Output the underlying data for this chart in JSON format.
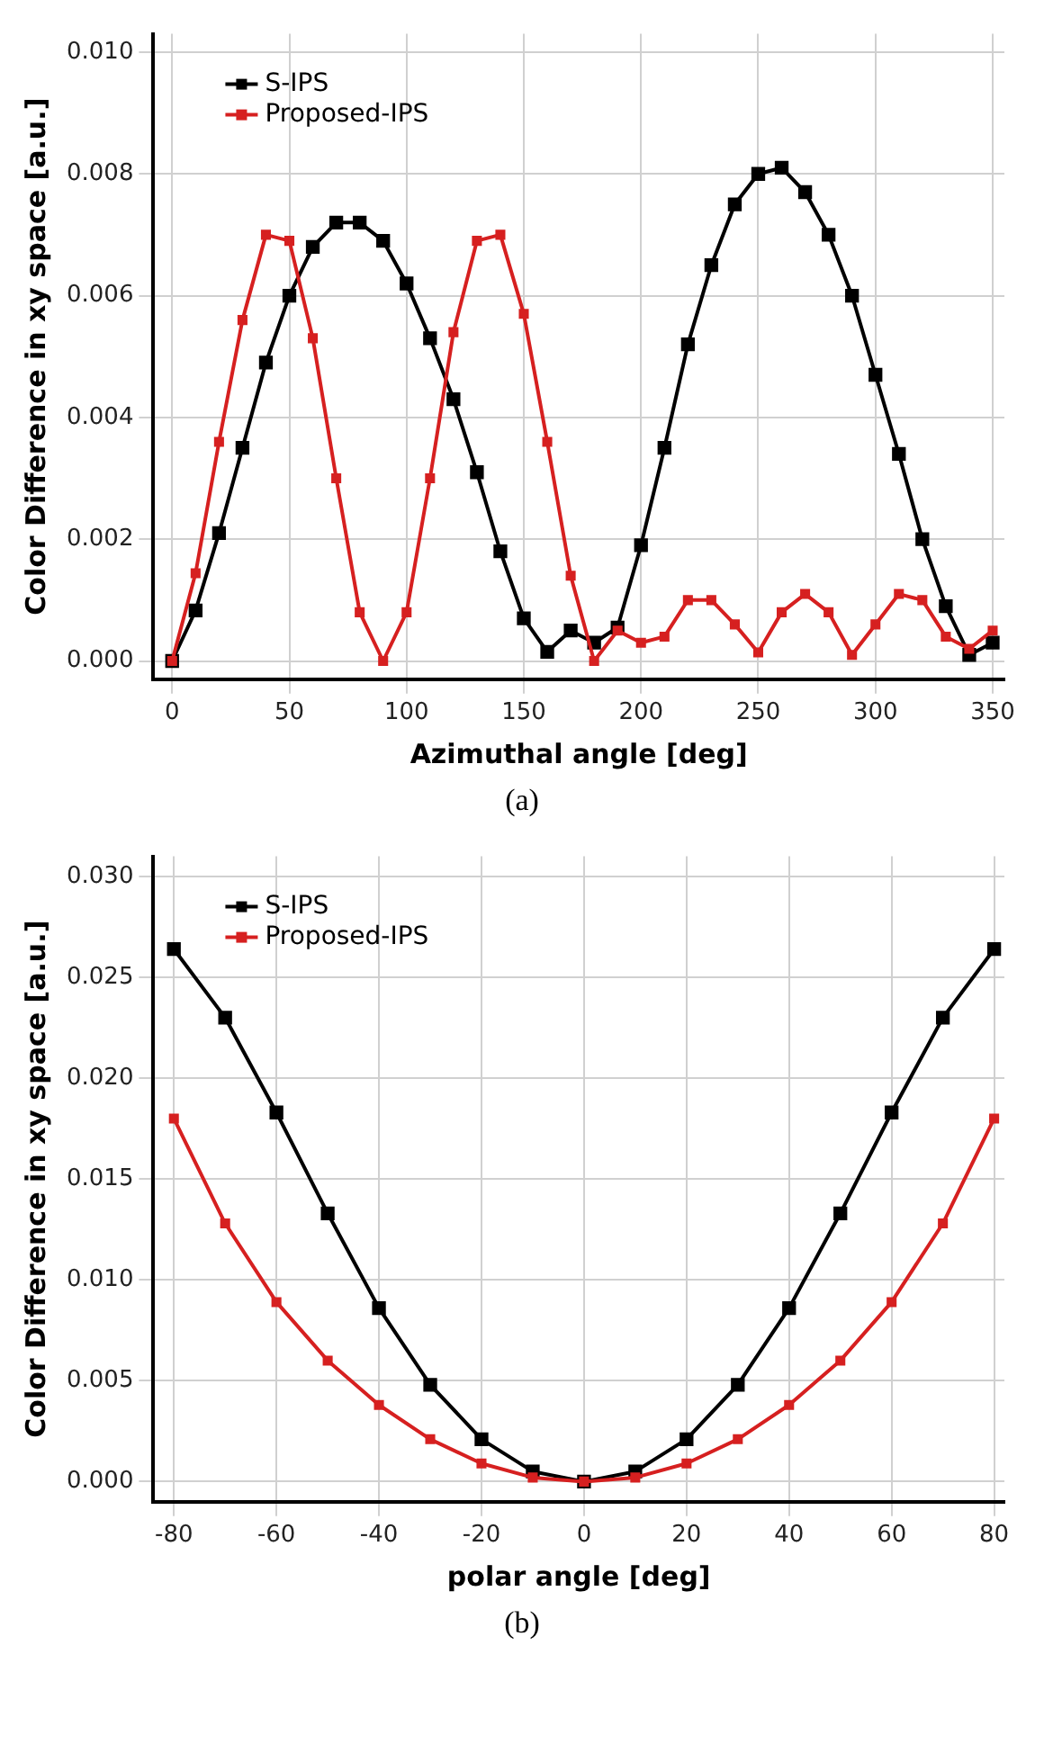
{
  "chart_data": [
    {
      "type": "line",
      "xlabel": "Azimuthal angle [deg]",
      "ylabel": "Color Difference in xy space [a.u.]",
      "annotations": [
        "(a)"
      ],
      "x": [
        0,
        10,
        20,
        30,
        40,
        50,
        60,
        70,
        80,
        90,
        100,
        110,
        120,
        130,
        140,
        150,
        160,
        170,
        180,
        190,
        200,
        210,
        220,
        230,
        240,
        250,
        260,
        270,
        280,
        290,
        300,
        310,
        320,
        330,
        340,
        350
      ],
      "series": [
        {
          "name": "S-IPS",
          "color": "#000000",
          "values": [
            0,
            0.00083,
            0.0021,
            0.0035,
            0.0049,
            0.006,
            0.0068,
            0.0072,
            0.0072,
            0.0069,
            0.0062,
            0.0053,
            0.0043,
            0.0031,
            0.0018,
            0.0007,
            0.00015,
            0.0005,
            0.0003,
            0.00055,
            0.0019,
            0.0035,
            0.0052,
            0.0065,
            0.0075,
            0.008,
            0.0081,
            0.0077,
            0.007,
            0.006,
            0.0047,
            0.0034,
            0.002,
            0.0009,
            0.0001,
            0.0003
          ]
        },
        {
          "name": "Proposed-IPS",
          "color": "#d62020",
          "values": [
            0,
            0.00144,
            0.0036,
            0.0056,
            0.007,
            0.0069,
            0.0053,
            0.003,
            0.0008,
            0,
            0.0008,
            0.003,
            0.0054,
            0.0069,
            0.007,
            0.0057,
            0.0036,
            0.0014,
            0,
            0.0005,
            0.0003,
            0.0004,
            0.001,
            0.001,
            0.0006,
            0.00014,
            0.0008,
            0.0011,
            0.0008,
            0.0001,
            0.0006,
            0.0011,
            0.001,
            0.0004,
            0.0002,
            0.0005
          ]
        }
      ],
      "xlim": [
        -8,
        355
      ],
      "xticks": [
        0,
        50,
        100,
        150,
        200,
        250,
        300,
        350
      ],
      "ylim": [
        -0.0003,
        0.0103
      ],
      "yticks": [
        {
          "value": 0,
          "label": "0.000"
        },
        {
          "value": 0.002,
          "label": "0.002"
        },
        {
          "value": 0.004,
          "label": "0.004"
        },
        {
          "value": 0.006,
          "label": "0.006"
        },
        {
          "value": 0.008,
          "label": "0.008"
        },
        {
          "value": 0.01,
          "label": "0.010"
        }
      ],
      "grid": true,
      "legend": "top left",
      "marker": "square",
      "line_style": "solid"
    },
    {
      "type": "line",
      "xlabel": "polar angle [deg]",
      "ylabel": "Color Difference in xy space [a.u.]",
      "annotations": [
        "(b)"
      ],
      "x": [
        -80,
        -70,
        -60,
        -50,
        -40,
        -30,
        -20,
        -10,
        0,
        10,
        20,
        30,
        40,
        50,
        60,
        70,
        80
      ],
      "series": [
        {
          "name": "S-IPS",
          "color": "#000000",
          "values": [
            0.0264,
            0.023,
            0.0183,
            0.0133,
            0.0086,
            0.0048,
            0.0021,
            0.0005,
            0,
            0.0005,
            0.0021,
            0.0048,
            0.0086,
            0.0133,
            0.0183,
            0.023,
            0.0264
          ]
        },
        {
          "name": "Proposed-IPS",
          "color": "#d62020",
          "values": [
            0.018,
            0.0128,
            0.0089,
            0.006,
            0.0038,
            0.0021,
            0.0009,
            0.0002,
            0,
            0.0002,
            0.0009,
            0.0021,
            0.0038,
            0.006,
            0.0089,
            0.0128,
            0.018
          ]
        }
      ],
      "xlim": [
        -84,
        82
      ],
      "xticks": [
        -80,
        -60,
        -40,
        -20,
        0,
        20,
        40,
        60,
        80
      ],
      "ylim": [
        -0.001,
        0.031
      ],
      "yticks": [
        {
          "value": 0,
          "label": "0.000"
        },
        {
          "value": 0.005,
          "label": "0.005"
        },
        {
          "value": 0.01,
          "label": "0.010"
        },
        {
          "value": 0.015,
          "label": "0.015"
        },
        {
          "value": 0.02,
          "label": "0.020"
        },
        {
          "value": 0.025,
          "label": "0.025"
        },
        {
          "value": 0.03,
          "label": "0.030"
        }
      ],
      "grid": true,
      "legend": "top left",
      "marker": "square",
      "line_style": "solid"
    }
  ]
}
